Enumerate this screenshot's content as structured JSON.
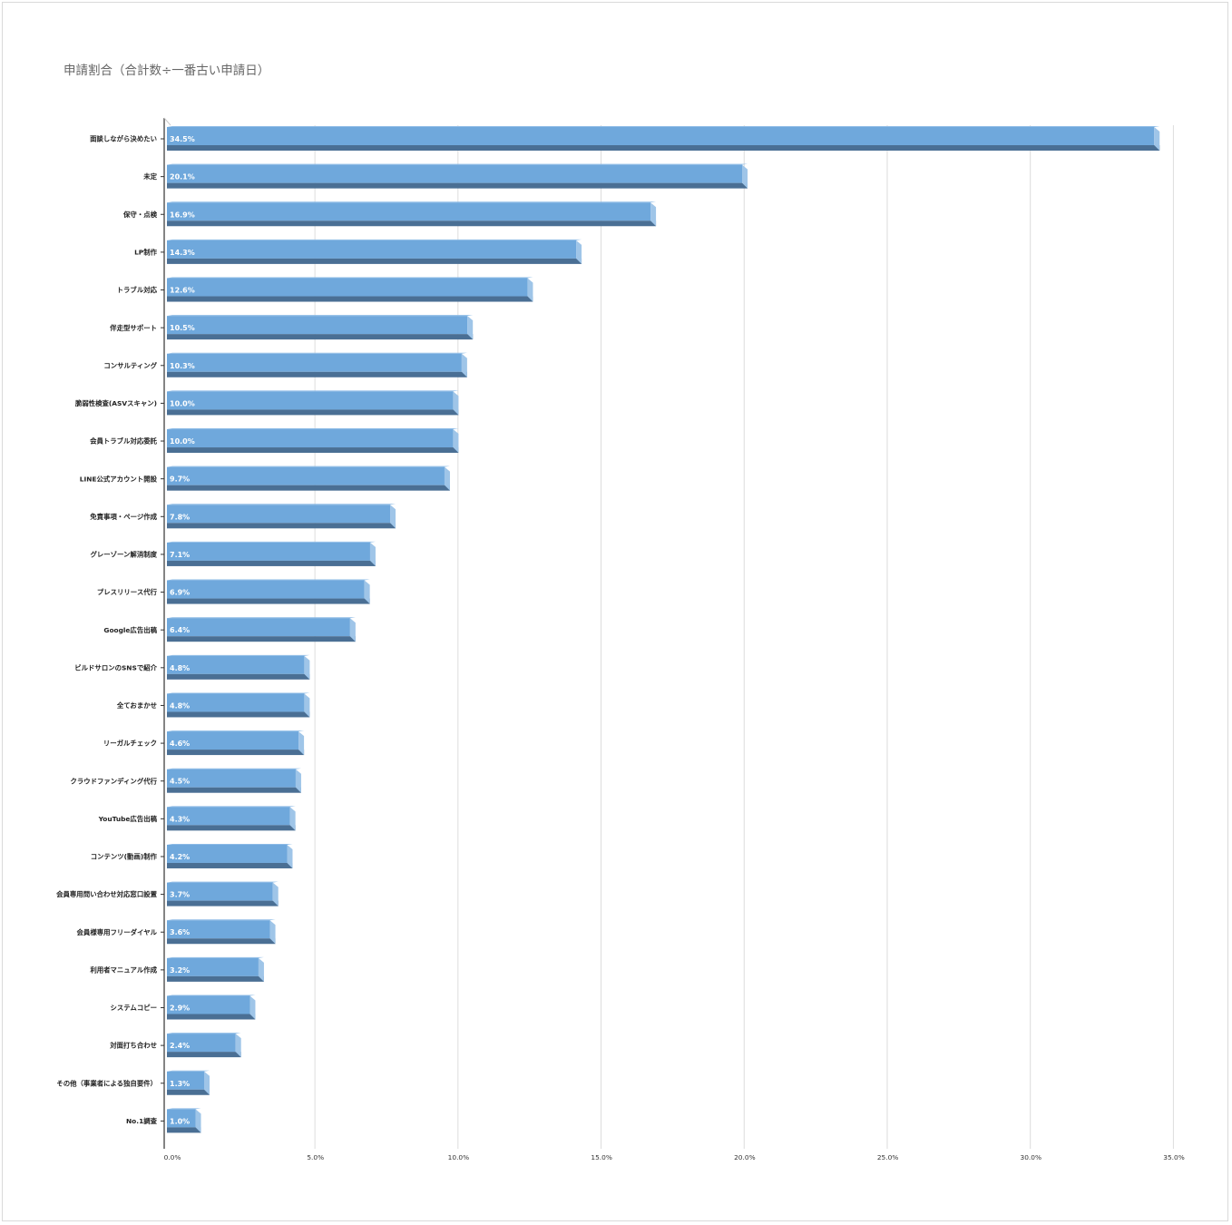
{
  "chart_data": {
    "type": "bar",
    "orientation": "horizontal",
    "title": "申請割合（合計数÷一番古い申請日）",
    "categories": [
      "面談しながら決めたい",
      "未定",
      "保守・点検",
      "LP制作",
      "トラブル対応",
      "伴走型サポート",
      "コンサルティング",
      "脆弱性検査(ASVスキャン)",
      "会員トラブル対応委託",
      "LINE公式アカウント開設",
      "免責事項・ページ作成",
      "グレーゾーン解消制度",
      "プレスリリース代行",
      "Google広告出稿",
      "ビルドサロンのSNSで紹介",
      "全ておまかせ",
      "リーガルチェック",
      "クラウドファンディング代行",
      "YouTube広告出稿",
      "コンテンツ(動画)制作",
      "会員専用問い合わせ対応窓口設置",
      "会員様専用フリーダイヤル",
      "利用者マニュアル作成",
      "システムコピー",
      "対面打ち合わせ",
      "その他（事業者による独自要件）",
      "No.1調査"
    ],
    "values": [
      34.5,
      20.1,
      16.9,
      14.3,
      12.6,
      10.5,
      10.3,
      10.0,
      10.0,
      9.7,
      7.8,
      7.1,
      6.9,
      6.4,
      4.8,
      4.8,
      4.6,
      4.5,
      4.3,
      4.2,
      3.7,
      3.6,
      3.2,
      2.9,
      2.4,
      1.3,
      1.0
    ],
    "value_labels": [
      "34.5%",
      "20.1%",
      "16.9%",
      "14.3%",
      "12.6%",
      "10.5%",
      "10.3%",
      "10.0%",
      "10.0%",
      "9.7%",
      "7.8%",
      "7.1%",
      "6.9%",
      "6.4%",
      "4.8%",
      "4.8%",
      "4.6%",
      "4.5%",
      "4.3%",
      "4.2%",
      "3.7%",
      "3.6%",
      "3.2%",
      "2.9%",
      "2.4%",
      "1.3%",
      "1.0%"
    ],
    "xlim": [
      0,
      35
    ],
    "xticks": [
      0,
      5,
      10,
      15,
      20,
      25,
      30,
      35
    ],
    "xtick_labels": [
      "0.0%",
      "5.0%",
      "10.0%",
      "15.0%",
      "20.0%",
      "25.0%",
      "30.0%",
      "35.0%"
    ],
    "xlabel": "",
    "ylabel": "",
    "grid": true,
    "legend": "none",
    "style": "3d",
    "colors": {
      "bar_front": "#6fa8dc",
      "bar_bottom": "#4a6f94",
      "bar_side": "#9fc5e8",
      "grid": "#dcdcdc",
      "axis": "#333333"
    }
  }
}
